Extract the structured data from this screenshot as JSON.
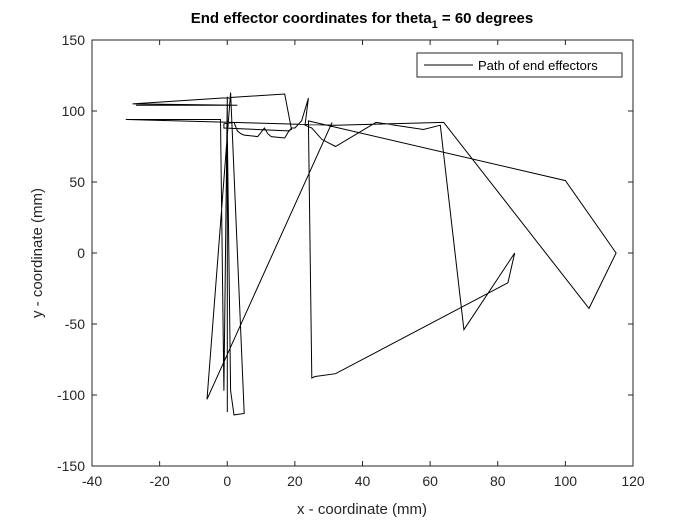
{
  "chart_data": {
    "type": "line",
    "title_main": "End effector coordinates for theta",
    "title_sub": "1",
    "title_rest": " = 60 degrees",
    "xlabel": "x - coordinate (mm)",
    "ylabel": "y - coordinate (mm)",
    "xlim": [
      -40,
      120
    ],
    "ylim": [
      -150,
      150
    ],
    "xticks": [
      -40,
      -20,
      0,
      20,
      40,
      60,
      80,
      100,
      120
    ],
    "yticks": [
      -150,
      -100,
      -50,
      0,
      50,
      100,
      150
    ],
    "grid": false,
    "legend_position": "top-right",
    "series": [
      {
        "name": "Path of end effectors",
        "color": "#000000",
        "x": [
          -27,
          3,
          -28,
          17,
          19,
          18,
          -1,
          -1,
          -1,
          2,
          3,
          4,
          5,
          9,
          10,
          11,
          12,
          13,
          17,
          18,
          19,
          20,
          22,
          24,
          23,
          24,
          25,
          28,
          32,
          44,
          58,
          63,
          70,
          85,
          83,
          32,
          26,
          25,
          24,
          100,
          115,
          107,
          64,
          32,
          -30,
          -2,
          -1,
          0,
          0,
          0,
          1,
          2,
          5,
          1,
          -6,
          31
        ],
        "y": [
          104,
          104,
          105,
          112,
          87,
          86,
          88,
          90,
          91,
          92,
          86,
          84,
          83,
          82,
          85,
          88,
          84,
          82,
          81,
          85,
          88,
          88,
          93,
          109,
          90,
          89,
          88,
          80,
          75,
          92,
          87,
          90,
          -54,
          0,
          -21,
          -85,
          -87,
          -88,
          93,
          51,
          0,
          -39,
          92,
          90,
          94,
          94,
          -97,
          110,
          -112,
          86,
          -97,
          -114,
          -113,
          113,
          -103,
          92
        ]
      }
    ]
  }
}
